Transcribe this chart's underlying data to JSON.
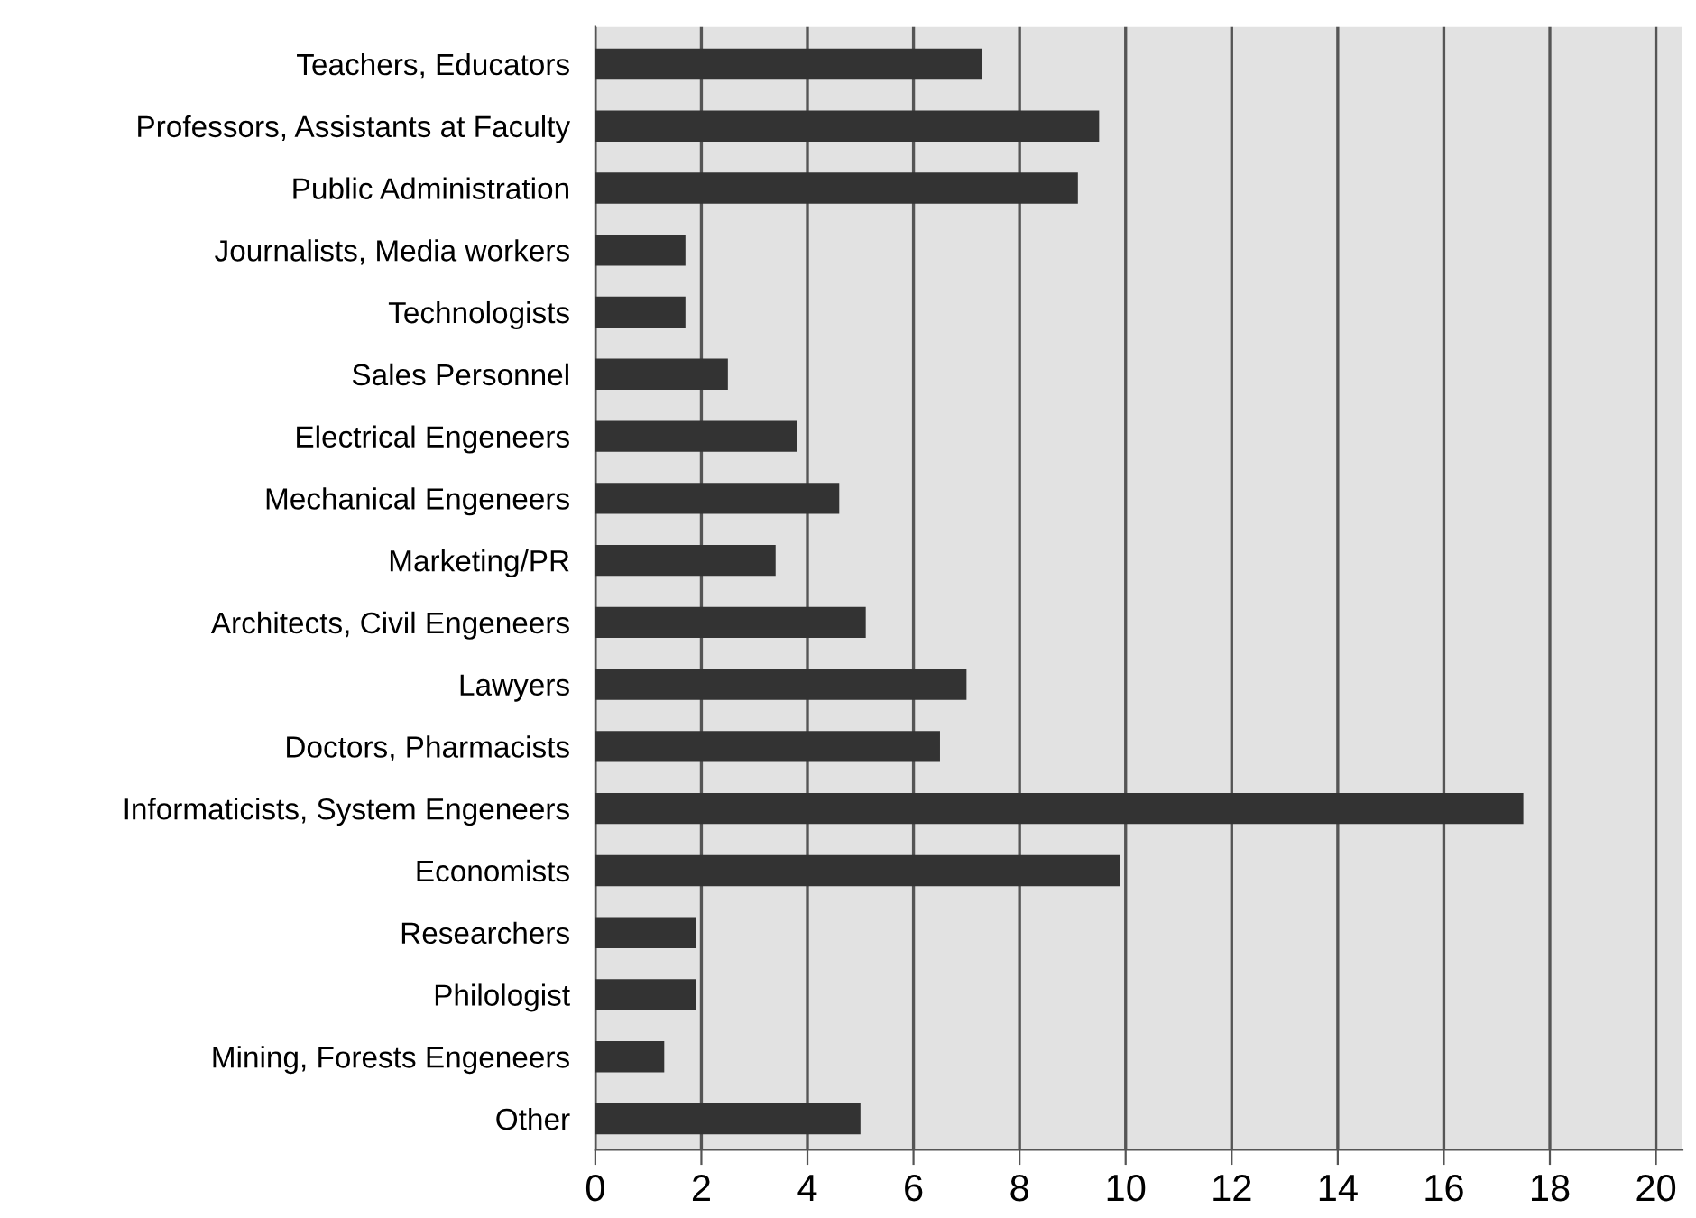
{
  "chart_data": {
    "type": "bar",
    "orientation": "horizontal",
    "categories": [
      "Teachers, Educators",
      "Professors, Assistants at Faculty",
      "Public Administration",
      "Journalists, Media workers",
      "Technologists",
      "Sales Personnel",
      "Electrical Engeneers",
      "Mechanical Engeneers",
      "Marketing/PR",
      "Architects, Civil Engeneers",
      "Lawyers",
      "Doctors, Pharmacists",
      "Informaticists, System Engeneers",
      "Economists",
      "Researchers",
      "Philologist",
      "Mining, Forests Engeneers",
      "Other"
    ],
    "values": [
      7.3,
      9.5,
      9.1,
      1.7,
      1.7,
      2.5,
      3.8,
      4.6,
      3.4,
      5.1,
      7.0,
      6.5,
      17.5,
      9.9,
      1.9,
      1.9,
      1.3,
      5.0
    ],
    "color": "#333333",
    "xlim": [
      0,
      20.5
    ],
    "xticks": [
      0,
      2,
      4,
      6,
      8,
      10,
      12,
      14,
      16,
      18,
      20
    ],
    "grid": "x"
  }
}
